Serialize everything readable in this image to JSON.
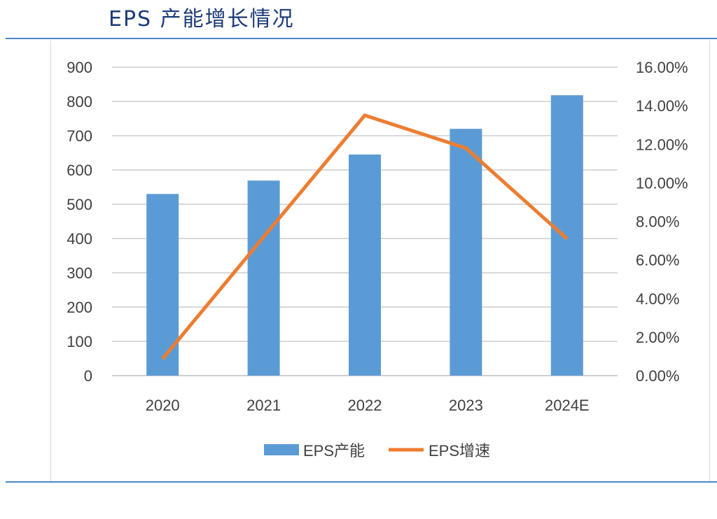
{
  "chart_data": {
    "type": "bar+line",
    "title": "EPS 产能增长情况",
    "categories": [
      "2020",
      "2021",
      "2022",
      "2023",
      "2024E"
    ],
    "series": [
      {
        "name": "EPS产能",
        "type": "bar",
        "axis": "left",
        "color": "#5b9bd5",
        "values": [
          530,
          569,
          645,
          720,
          818
        ]
      },
      {
        "name": "EPS增速",
        "type": "line",
        "axis": "right",
        "color": "#ed7d31",
        "values": [
          0.87,
          7.2,
          13.5,
          11.8,
          7.1
        ]
      }
    ],
    "y_left": {
      "ylim": [
        0,
        900
      ],
      "ticks": [
        "0",
        "100",
        "200",
        "300",
        "400",
        "500",
        "600",
        "700",
        "800",
        "900"
      ]
    },
    "y_right": {
      "ylim": [
        0,
        16
      ],
      "ticks": [
        "0.00%",
        "2.00%",
        "4.00%",
        "6.00%",
        "8.00%",
        "10.00%",
        "12.00%",
        "14.00%",
        "16.00%"
      ]
    },
    "grid": true,
    "legend": "bottom"
  }
}
